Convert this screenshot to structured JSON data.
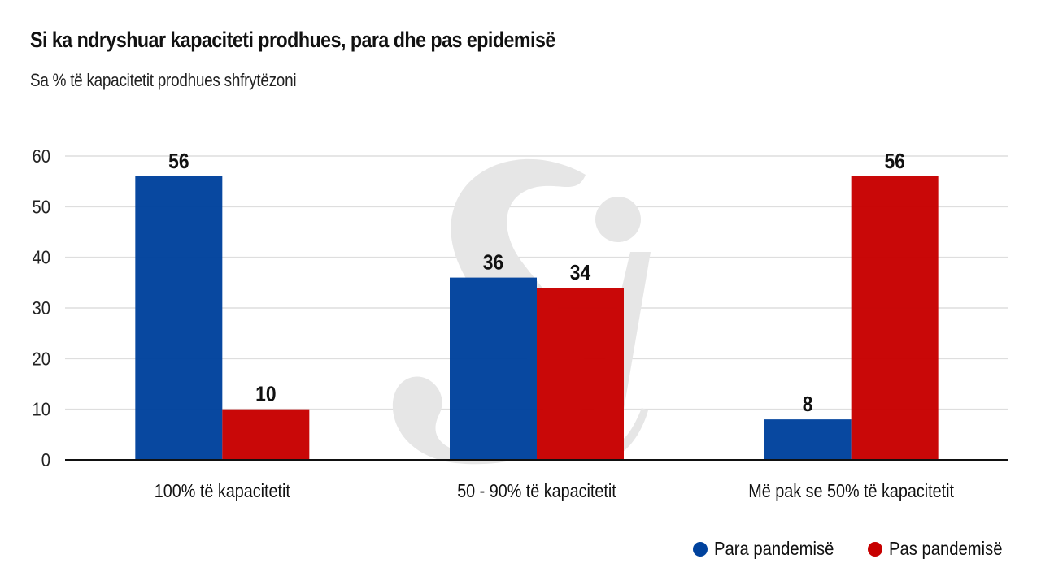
{
  "header": {
    "title": "Si ka ndryshuar kapaciteti prodhues, para dhe pas epidemisë",
    "subtitle": "Sa % të kapacitetit prodhues shfrytëzoni"
  },
  "watermark": {
    "icon": "si-logo-watermark",
    "color": "#e6e6e6"
  },
  "legend": {
    "items": [
      {
        "label": "Para pandemisë",
        "color": "#00429d"
      },
      {
        "label": "Pas pandemisë",
        "color": "#c70000"
      }
    ],
    "placement": "bottom-right"
  },
  "chart_data": {
    "type": "bar",
    "title": "Si ka ndryshuar kapaciteti prodhues, para dhe pas epidemisë",
    "subtitle": "Sa % të kapacitetit prodhues shfrytëzoni",
    "xlabel": "",
    "ylabel": "",
    "categories": [
      "100% të kapacitetit",
      "50 - 90% të kapacitetit",
      "Më pak se 50% të kapacitetit"
    ],
    "series": [
      {
        "name": "Para pandemisë",
        "color": "#00429d",
        "values": [
          56,
          36,
          8
        ]
      },
      {
        "name": "Pas pandemisë",
        "color": "#c70000",
        "values": [
          10,
          34,
          56
        ]
      }
    ],
    "data_labels": [
      [
        "56",
        "36",
        "8"
      ],
      [
        "10",
        "34",
        "56"
      ]
    ],
    "ylim": [
      0,
      60
    ],
    "yticks": [
      0,
      10,
      20,
      30,
      40,
      50,
      60
    ],
    "grid": true,
    "legend_position": "bottom-right"
  }
}
